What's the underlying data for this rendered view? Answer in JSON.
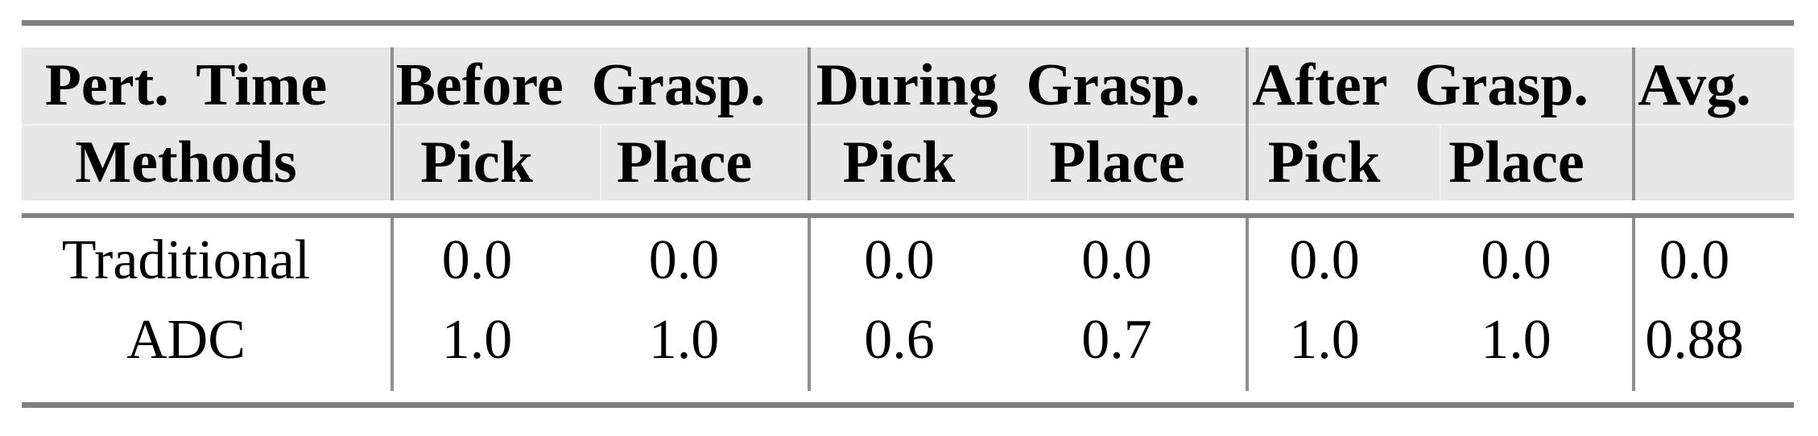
{
  "colors": {
    "rule_gray": "#7f7f7f",
    "divider_gray": "#8a8a8a",
    "header_bg": "#e7e7e7",
    "header_grid_line": "#f3f3f3",
    "text": "#000000",
    "background": "#ffffff"
  },
  "table": {
    "header": {
      "corner_top": "Pert. Time",
      "corner_bottom": "Methods",
      "groups": [
        {
          "label": "Before Grasp."
        },
        {
          "label": "During Grasp."
        },
        {
          "label": "After Grasp."
        }
      ],
      "avg_label": "Avg.",
      "sub_labels": [
        "Pick",
        "Place",
        "Pick",
        "Place",
        "Pick",
        "Place"
      ]
    },
    "rows": [
      {
        "method": "Traditional",
        "values": [
          "0.0",
          "0.0",
          "0.0",
          "0.0",
          "0.0",
          "0.0",
          "0.0"
        ]
      },
      {
        "method": "ADC",
        "values": [
          "1.0",
          "1.0",
          "0.6",
          "0.7",
          "1.0",
          "1.0",
          "0.88"
        ]
      }
    ]
  }
}
